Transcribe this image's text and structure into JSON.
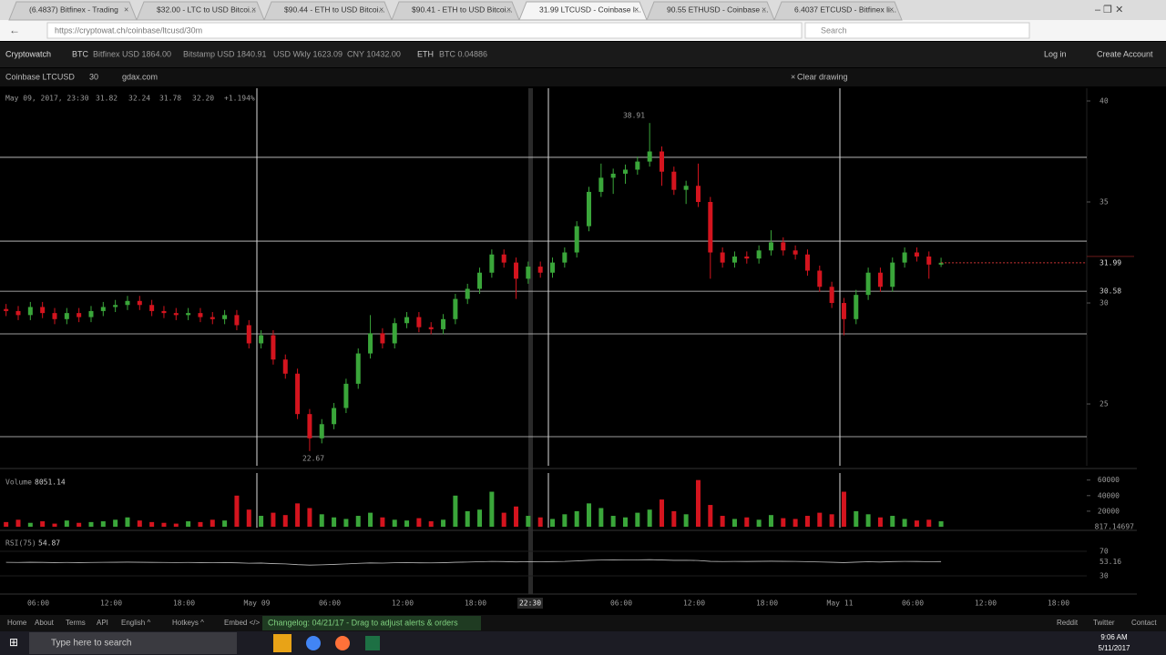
{
  "browser": {
    "tabs": [
      "(6.4837) Bitfinex - Trading",
      "$32.00 - LTC to USD Bitcoi...",
      "$90.44 - ETH to USD Bitcoi...",
      "$90.41 - ETH to USD Bitcoi...",
      "31.99 LTCUSD - Coinbase l...",
      "90.55 ETHUSD - Coinbase ...",
      "6.4037 ETCUSD - Bitfinex li..."
    ],
    "url": "https://cryptowat.ch/coinbase/ltcusd/30m",
    "search": "Search"
  },
  "site": {
    "brand": "Cryptowatch",
    "btc": "BTC",
    "btc_markets": [
      "Bitfinex USD 1864.00",
      "Bitstamp USD 1840.91",
      "USD Wkly 1623.09",
      "CNY 10432.00"
    ],
    "eth": "ETH",
    "eth_markets": [
      "BTC 0.04886"
    ],
    "login": "Log in",
    "create": "Create Account"
  },
  "toolbar": {
    "pair": "Coinbase LTCUSD",
    "interval": "30",
    "exchange": "gdax.com",
    "clear": "Clear drawing"
  },
  "chart_data": {
    "type": "candlestick",
    "info": [
      "May 09, 2017, 23:30",
      "31.82",
      "32.24",
      "31.78",
      "32.20",
      "+1.194%"
    ],
    "ylim": [
      21.94,
      40.63
    ],
    "yticks": [
      40,
      35,
      30,
      25
    ],
    "last_price": 31.99,
    "high_label": 38.91,
    "low_label": 22.67,
    "levels": [
      37.21,
      33.06,
      30.58,
      28.47,
      23.38
    ],
    "candles": [
      [
        29.7,
        29.95,
        29.35,
        29.6
      ],
      [
        29.6,
        29.85,
        29.15,
        29.4
      ],
      [
        29.4,
        30.05,
        29.15,
        29.8
      ],
      [
        29.8,
        30.05,
        29.25,
        29.5
      ],
      [
        29.5,
        29.75,
        28.95,
        29.2
      ],
      [
        29.2,
        29.75,
        28.95,
        29.5
      ],
      [
        29.5,
        29.75,
        29.05,
        29.3
      ],
      [
        29.3,
        29.85,
        29.05,
        29.6
      ],
      [
        29.6,
        30.05,
        29.35,
        29.8
      ],
      [
        29.8,
        30.15,
        29.55,
        29.9
      ],
      [
        29.9,
        30.35,
        29.65,
        30.1
      ],
      [
        30.1,
        30.35,
        29.65,
        29.9
      ],
      [
        29.9,
        30.15,
        29.35,
        29.6
      ],
      [
        29.6,
        29.85,
        29.25,
        29.5
      ],
      [
        29.5,
        29.75,
        29.15,
        29.4
      ],
      [
        29.4,
        29.75,
        29.15,
        29.5
      ],
      [
        29.5,
        29.75,
        29.05,
        29.3
      ],
      [
        29.3,
        29.55,
        28.95,
        29.2
      ],
      [
        29.2,
        29.65,
        28.95,
        29.4
      ],
      [
        29.4,
        29.65,
        28.65,
        28.9
      ],
      [
        28.9,
        29.15,
        27.75,
        28.0
      ],
      [
        28.0,
        28.65,
        27.75,
        28.4
      ],
      [
        28.4,
        28.65,
        26.95,
        27.2
      ],
      [
        27.2,
        27.45,
        26.25,
        26.5
      ],
      [
        26.5,
        26.75,
        24.25,
        24.5
      ],
      [
        24.5,
        24.75,
        22.67,
        23.3
      ],
      [
        23.3,
        24.25,
        23.05,
        24.0
      ],
      [
        24.0,
        25.05,
        23.75,
        24.8
      ],
      [
        24.8,
        26.25,
        24.55,
        26.0
      ],
      [
        26.0,
        27.75,
        25.75,
        27.5
      ],
      [
        27.5,
        29.4,
        27.25,
        28.5
      ],
      [
        28.5,
        28.75,
        27.75,
        28.0
      ],
      [
        28.0,
        29.25,
        27.75,
        29.0
      ],
      [
        29.0,
        29.55,
        28.75,
        29.3
      ],
      [
        29.3,
        29.55,
        28.55,
        28.8
      ],
      [
        28.8,
        29.05,
        28.45,
        28.7
      ],
      [
        28.7,
        29.45,
        28.45,
        29.2
      ],
      [
        29.2,
        30.45,
        28.95,
        30.2
      ],
      [
        30.2,
        30.95,
        29.95,
        30.7
      ],
      [
        30.7,
        31.75,
        30.45,
        31.5
      ],
      [
        31.5,
        32.65,
        31.25,
        32.4
      ],
      [
        32.4,
        32.65,
        31.75,
        32.0
      ],
      [
        32.0,
        32.25,
        30.2,
        31.2
      ],
      [
        31.2,
        32.05,
        30.95,
        31.8
      ],
      [
        31.8,
        32.05,
        31.25,
        31.5
      ],
      [
        31.5,
        32.25,
        31.25,
        32.0
      ],
      [
        32.0,
        32.75,
        31.75,
        32.5
      ],
      [
        32.5,
        34.05,
        32.25,
        33.8
      ],
      [
        33.8,
        35.75,
        33.55,
        35.5
      ],
      [
        35.5,
        36.9,
        35.25,
        36.2
      ],
      [
        36.2,
        36.65,
        35.4,
        36.4
      ],
      [
        36.4,
        36.85,
        35.9,
        36.6
      ],
      [
        36.6,
        37.25,
        36.35,
        37.0
      ],
      [
        37.0,
        38.91,
        36.75,
        37.5
      ],
      [
        37.5,
        37.75,
        35.8,
        36.5
      ],
      [
        36.5,
        36.75,
        35.35,
        35.6
      ],
      [
        35.6,
        36.05,
        34.9,
        35.8
      ],
      [
        35.8,
        36.9,
        34.75,
        35.0
      ],
      [
        35.0,
        35.25,
        31.2,
        32.5
      ],
      [
        32.5,
        32.75,
        31.75,
        32.0
      ],
      [
        32.0,
        32.55,
        31.75,
        32.3
      ],
      [
        32.3,
        32.55,
        31.95,
        32.2
      ],
      [
        32.2,
        32.85,
        31.95,
        32.6
      ],
      [
        32.6,
        33.6,
        32.35,
        33.0
      ],
      [
        33.0,
        33.25,
        32.35,
        32.6
      ],
      [
        32.6,
        32.85,
        32.15,
        32.4
      ],
      [
        32.4,
        32.65,
        31.35,
        31.6
      ],
      [
        31.6,
        31.85,
        30.55,
        30.8
      ],
      [
        30.8,
        31.05,
        29.75,
        30.0
      ],
      [
        30.0,
        30.25,
        28.4,
        29.2
      ],
      [
        29.2,
        30.65,
        28.95,
        30.4
      ],
      [
        30.4,
        31.75,
        30.15,
        31.5
      ],
      [
        31.5,
        31.75,
        30.55,
        30.8
      ],
      [
        30.8,
        32.25,
        30.55,
        32.0
      ],
      [
        32.0,
        32.75,
        31.75,
        32.5
      ],
      [
        32.5,
        32.75,
        32.05,
        32.3
      ],
      [
        32.3,
        32.55,
        31.2,
        31.9
      ],
      [
        31.9,
        32.24,
        31.78,
        31.99
      ]
    ],
    "x_labels": [
      "06:00",
      "12:00",
      "18:00",
      "May 09",
      "06:00",
      "12:00",
      "18:00",
      "22:30",
      "06:00",
      "12:00",
      "18:00",
      "May 11",
      "06:00",
      "12:00",
      "18:00"
    ],
    "volume": {
      "title": "Volume",
      "current": 8051.14,
      "last": 817.14697,
      "ylim": [
        0,
        69000
      ],
      "yticks": [
        60000,
        40000,
        20000
      ],
      "values": [
        6000,
        9000,
        5000,
        7000,
        4000,
        8000,
        5000,
        6000,
        7000,
        9000,
        12000,
        8000,
        6000,
        5000,
        4000,
        7000,
        6000,
        9000,
        8000,
        40000,
        22000,
        14000,
        18000,
        15000,
        30000,
        24000,
        16000,
        12000,
        10000,
        14000,
        18000,
        12000,
        9000,
        8000,
        11000,
        7000,
        9000,
        40000,
        20000,
        22000,
        45000,
        18000,
        26000,
        14000,
        12000,
        10000,
        16000,
        20000,
        30000,
        24000,
        14000,
        12000,
        18000,
        22000,
        35000,
        20000,
        16000,
        60000,
        28000,
        14000,
        10000,
        12000,
        9000,
        15000,
        11000,
        10000,
        14000,
        18000,
        16000,
        45000,
        20000,
        16000,
        12000,
        14000,
        10000,
        8000,
        9000,
        7000
      ]
    },
    "rsi": {
      "title": "RSI(75)",
      "current": 54.87,
      "mid": 53.16,
      "ylim": [
        4.8,
        93.7
      ],
      "yticks": [
        70,
        30
      ],
      "values": [
        52,
        51.8,
        52.1,
        51.9,
        51.6,
        51.8,
        51.6,
        51.8,
        52,
        52.1,
        52.3,
        52.1,
        51.9,
        51.8,
        51.7,
        51.8,
        51.6,
        51.5,
        51.6,
        51.2,
        50.5,
        50.8,
        49.9,
        49.4,
        48.2,
        47.5,
        48,
        48.6,
        49.4,
        50.4,
        51,
        50.7,
        51.3,
        51.5,
        51.2,
        51.1,
        51.4,
        52.1,
        52.4,
        52.9,
        53.5,
        53.2,
        52.7,
        53.1,
        52.9,
        53.2,
        53.5,
        54.3,
        55.3,
        55.7,
        55.8,
        55.9,
        56.1,
        56.4,
        55.8,
        55.3,
        55.4,
        55,
        53.6,
        53.3,
        53.5,
        53.4,
        53.6,
        53.8,
        53.6,
        53.5,
        53.1,
        52.6,
        52.1,
        51.6,
        52.3,
        52.9,
        52.5,
        53.2,
        53.5,
        53.4,
        53.1,
        53.2
      ]
    }
  },
  "footer": {
    "links": [
      "Home",
      "About",
      "Terms",
      "API",
      "English ^",
      "Hotkeys ^",
      "Embed </>"
    ],
    "changelog": "Changelog: 04/21/17 - Drag to adjust alerts & orders",
    "social": [
      "Reddit",
      "Twitter",
      "Contact"
    ]
  },
  "taskbar": {
    "search": "Type here to search",
    "time": "9:06 AM",
    "date": "5/11/2017"
  }
}
